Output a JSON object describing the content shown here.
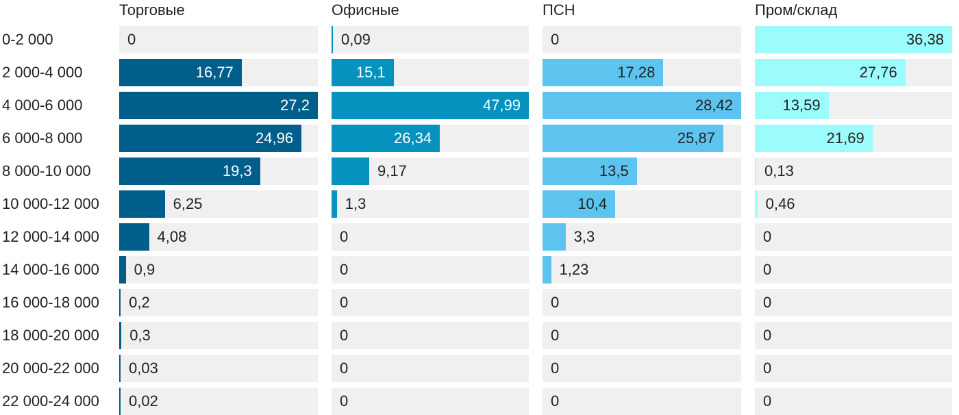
{
  "chart_data": {
    "type": "bar",
    "orientation": "horizontal",
    "layout": "small-multiples",
    "categories": [
      "0-2 000",
      "2 000-4 000",
      "4 000-6 000",
      "6 000-8 000",
      "8 000-10 000",
      "10 000-12 000",
      "12 000-14 000",
      "14 000-16 000",
      "16 000-18 000",
      "18 000-20 000",
      "20 000-22 000",
      "22 000-24 000"
    ],
    "series": [
      {
        "name": "Торговые",
        "color": "#005f8a",
        "max": 27.2,
        "values": [
          0,
          16.77,
          27.2,
          24.96,
          19.3,
          6.25,
          4.08,
          0.9,
          0.2,
          0.3,
          0.03,
          0.02
        ],
        "labels": [
          "0",
          "16,77",
          "27,2",
          "24,96",
          "19,3",
          "6,25",
          "4,08",
          "0,9",
          "0,2",
          "0,3",
          "0,03",
          "0,02"
        ]
      },
      {
        "name": "Офисные",
        "color": "#0592be",
        "max": 47.99,
        "values": [
          0.09,
          15.1,
          47.99,
          26.34,
          9.17,
          1.3,
          0,
          0,
          0,
          0,
          0,
          0
        ],
        "labels": [
          "0,09",
          "15,1",
          "47,99",
          "26,34",
          "9,17",
          "1,3",
          "0",
          "0",
          "0",
          "0",
          "0",
          "0"
        ]
      },
      {
        "name": "ПСН",
        "color": "#5dc4f0",
        "max": 28.42,
        "values": [
          0,
          17.28,
          28.42,
          25.87,
          13.5,
          10.4,
          3.3,
          1.23,
          0,
          0,
          0,
          0
        ],
        "labels": [
          "0",
          "17,28",
          "28,42",
          "25,87",
          "13,5",
          "10,4",
          "3,3",
          "1,23",
          "0",
          "0",
          "0",
          "0"
        ]
      },
      {
        "name": "Пром/склад",
        "color": "#9cfcfc",
        "max": 36.38,
        "values": [
          36.38,
          27.76,
          13.59,
          21.69,
          0.13,
          0.46,
          0,
          0,
          0,
          0,
          0,
          0
        ],
        "labels": [
          "36,38",
          "27,76",
          "13,59",
          "21,69",
          "0,13",
          "0,46",
          "0",
          "0",
          "0",
          "0",
          "0",
          "0"
        ]
      }
    ],
    "label_text_color_dark": "#222222",
    "label_text_color_light": "#ffffff",
    "track_color": "#f0f0f0",
    "legend": "none",
    "grid": false
  }
}
